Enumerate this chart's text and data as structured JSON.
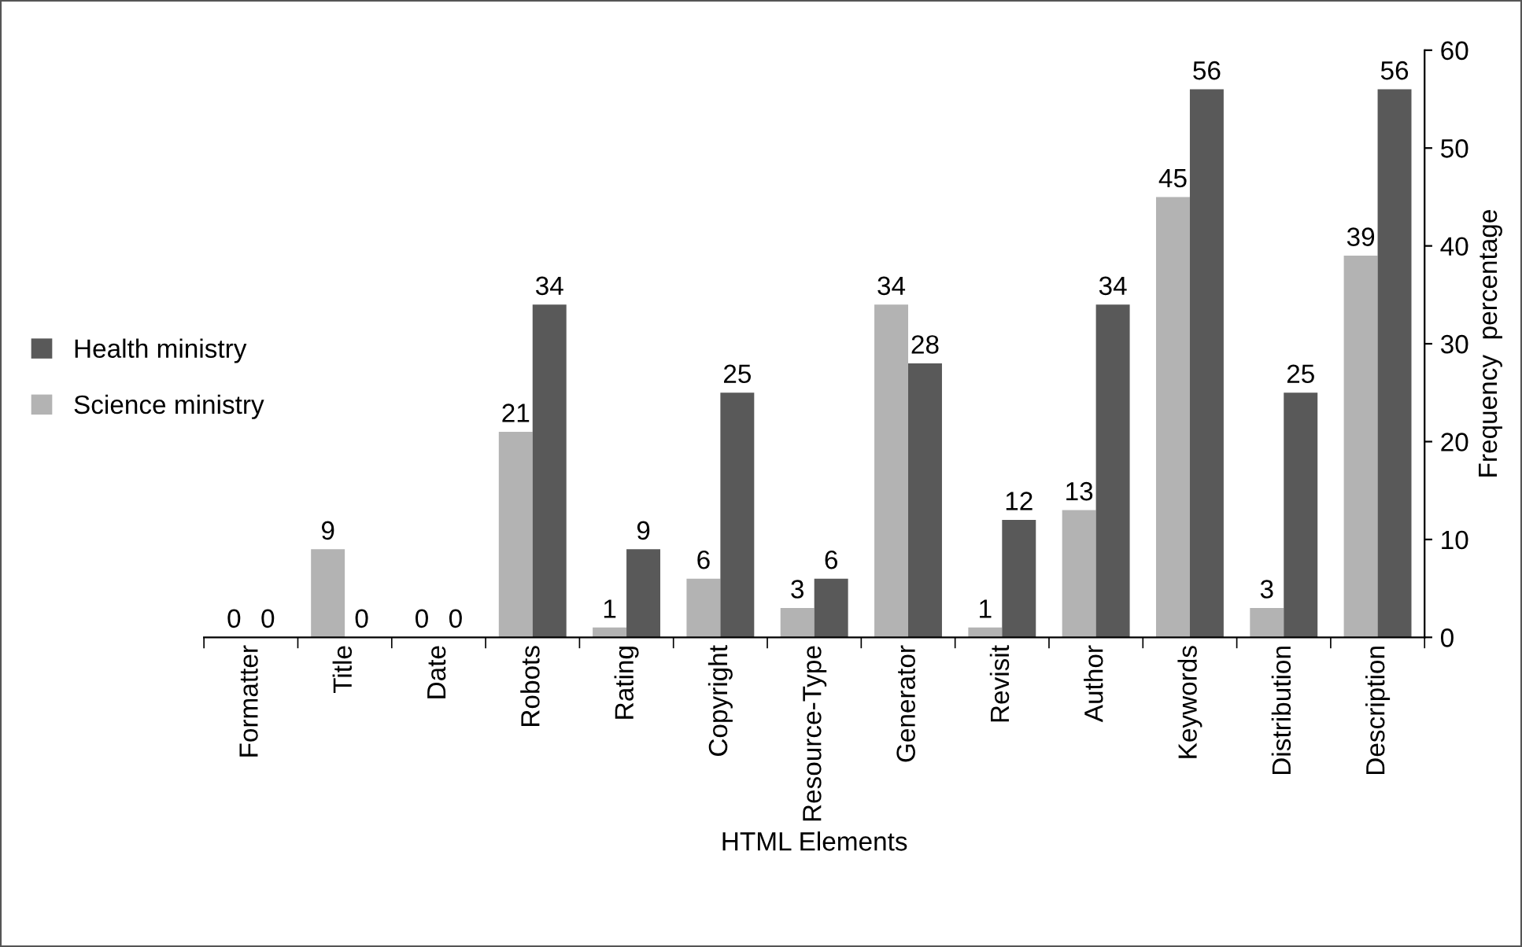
{
  "chart_data": {
    "type": "bar",
    "xlabel": "HTML Elements",
    "ylabel": "Frequency  percentage",
    "categories": [
      "Formatter",
      "Title",
      "Date",
      "Robots",
      "Rating",
      "Copyright",
      "Resource-Type",
      "Generator",
      "Revisit",
      "Author",
      "Keywords",
      "Distribution",
      "Description"
    ],
    "series": [
      {
        "name": "Science ministry",
        "color": "#b3b3b3",
        "values": [
          0,
          9,
          0,
          21,
          1,
          6,
          3,
          34,
          1,
          13,
          45,
          3,
          39
        ]
      },
      {
        "name": "Health ministry",
        "color": "#595959",
        "values": [
          0,
          0,
          0,
          34,
          9,
          25,
          6,
          28,
          12,
          34,
          56,
          25,
          56
        ]
      }
    ],
    "ylim": [
      0,
      60
    ],
    "yticks": [
      0,
      10,
      20,
      30,
      40,
      50,
      60
    ],
    "data_labels": true,
    "legend": "left",
    "grid": false
  }
}
